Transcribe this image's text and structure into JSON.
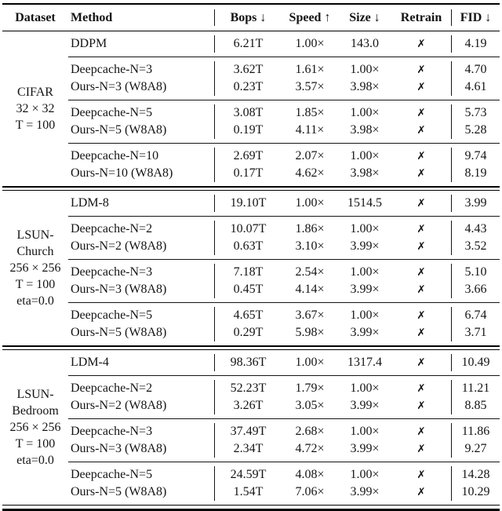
{
  "colors": {
    "text": "#141414",
    "rule": "#000000",
    "background": "#ffffff"
  },
  "table": {
    "columns": {
      "dataset": "Dataset",
      "method": "Method",
      "bops": "Bops ↓",
      "speed": "Speed ↑",
      "size": "Size ↓",
      "retrain": "Retrain",
      "fid": "FID ↓"
    },
    "sections": [
      {
        "dataset_lines": [
          "CIFAR",
          "32 × 32",
          "T = 100"
        ],
        "groups": [
          {
            "rows": [
              {
                "method": "DDPM",
                "bops": "6.21T",
                "speed": "1.00×",
                "size": "143.0",
                "retrain": "✗",
                "fid": "4.19"
              }
            ]
          },
          {
            "rows": [
              {
                "method": "Deepcache-N=3",
                "bops": "3.62T",
                "speed": "1.61×",
                "size": "1.00×",
                "retrain": "✗",
                "fid": "4.70"
              },
              {
                "method": "Ours-N=3 (W8A8)",
                "bops": "0.23T",
                "speed": "3.57×",
                "size": "3.98×",
                "retrain": "✗",
                "fid": "4.61"
              }
            ]
          },
          {
            "rows": [
              {
                "method": "Deepcache-N=5",
                "bops": "3.08T",
                "speed": "1.85×",
                "size": "1.00×",
                "retrain": "✗",
                "fid": "5.73"
              },
              {
                "method": "Ours-N=5 (W8A8)",
                "bops": "0.19T",
                "speed": "4.11×",
                "size": "3.98×",
                "retrain": "✗",
                "fid": "5.28"
              }
            ]
          },
          {
            "rows": [
              {
                "method": "Deepcache-N=10",
                "bops": "2.69T",
                "speed": "2.07×",
                "size": "1.00×",
                "retrain": "✗",
                "fid": "9.74"
              },
              {
                "method": "Ours-N=10 (W8A8)",
                "bops": "0.17T",
                "speed": "4.62×",
                "size": "3.98×",
                "retrain": "✗",
                "fid": "8.19"
              }
            ]
          }
        ]
      },
      {
        "dataset_lines": [
          "LSUN-",
          "Church",
          "256 × 256",
          "T = 100",
          "eta=0.0"
        ],
        "groups": [
          {
            "rows": [
              {
                "method": "LDM-8",
                "bops": "19.10T",
                "speed": "1.00×",
                "size": "1514.5",
                "retrain": "✗",
                "fid": "3.99"
              }
            ]
          },
          {
            "rows": [
              {
                "method": "Deepcache-N=2",
                "bops": "10.07T",
                "speed": "1.86×",
                "size": "1.00×",
                "retrain": "✗",
                "fid": "4.43"
              },
              {
                "method": "Ours-N=2 (W8A8)",
                "bops": "0.63T",
                "speed": "3.10×",
                "size": "3.99×",
                "retrain": "✗",
                "fid": "3.52"
              }
            ]
          },
          {
            "rows": [
              {
                "method": "Deepcache-N=3",
                "bops": "7.18T",
                "speed": "2.54×",
                "size": "1.00×",
                "retrain": "✗",
                "fid": "5.10"
              },
              {
                "method": "Ours-N=3 (W8A8)",
                "bops": "0.45T",
                "speed": "4.14×",
                "size": "3.99×",
                "retrain": "✗",
                "fid": "3.66"
              }
            ]
          },
          {
            "rows": [
              {
                "method": "Deepcache-N=5",
                "bops": "4.65T",
                "speed": "3.67×",
                "size": "1.00×",
                "retrain": "✗",
                "fid": "6.74"
              },
              {
                "method": "Ours-N=5 (W8A8)",
                "bops": "0.29T",
                "speed": "5.98×",
                "size": "3.99×",
                "retrain": "✗",
                "fid": "3.71"
              }
            ]
          }
        ]
      },
      {
        "dataset_lines": [
          "LSUN-",
          "Bedroom",
          "256 × 256",
          "T = 100",
          "eta=0.0"
        ],
        "groups": [
          {
            "rows": [
              {
                "method": "LDM-4",
                "bops": "98.36T",
                "speed": "1.00×",
                "size": "1317.4",
                "retrain": "✗",
                "fid": "10.49"
              }
            ]
          },
          {
            "rows": [
              {
                "method": "Deepcache-N=2",
                "bops": "52.23T",
                "speed": "1.79×",
                "size": "1.00×",
                "retrain": "✗",
                "fid": "11.21"
              },
              {
                "method": "Ours-N=2 (W8A8)",
                "bops": "3.26T",
                "speed": "3.05×",
                "size": "3.99×",
                "retrain": "✗",
                "fid": "8.85"
              }
            ]
          },
          {
            "rows": [
              {
                "method": "Deepcache-N=3",
                "bops": "37.49T",
                "speed": "2.68×",
                "size": "1.00×",
                "retrain": "✗",
                "fid": "11.86"
              },
              {
                "method": "Ours-N=3 (W8A8)",
                "bops": "2.34T",
                "speed": "4.72×",
                "size": "3.99×",
                "retrain": "✗",
                "fid": "9.27"
              }
            ]
          },
          {
            "rows": [
              {
                "method": "Deepcache-N=5",
                "bops": "24.59T",
                "speed": "4.08×",
                "size": "1.00×",
                "retrain": "✗",
                "fid": "14.28"
              },
              {
                "method": "Ours-N=5 (W8A8)",
                "bops": "1.54T",
                "speed": "7.06×",
                "size": "3.99×",
                "retrain": "✗",
                "fid": "10.29"
              }
            ]
          }
        ]
      }
    ]
  }
}
